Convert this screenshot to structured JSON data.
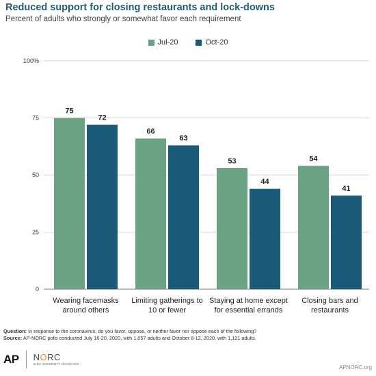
{
  "header": {
    "title": "Reduced support for closing restaurants and lock-downs",
    "subtitle": "Percent of adults who strongly or somewhat favor each requirement"
  },
  "colors": {
    "jul": "#6aa284",
    "oct": "#1a5b78",
    "grid": "#d9d9d9",
    "axis": "#777777"
  },
  "chart_data": {
    "type": "bar",
    "categories": [
      [
        "Wearing facemasks",
        "around others"
      ],
      [
        "Limiting gatherings to",
        "10 or fewer"
      ],
      [
        "Staying at home except",
        "for essential errands"
      ],
      [
        "Closing bars and",
        "restaurants"
      ]
    ],
    "series": [
      {
        "name": "Jul-20",
        "values": [
          75,
          66,
          53,
          54
        ],
        "color": "#6aa284"
      },
      {
        "name": "Oct-20",
        "values": [
          72,
          63,
          44,
          41
        ],
        "color": "#1a5b78"
      }
    ],
    "ylim": [
      0,
      100
    ],
    "yticks": [
      {
        "value": 0,
        "label": "0"
      },
      {
        "value": 25,
        "label": "25"
      },
      {
        "value": 50,
        "label": "50"
      },
      {
        "value": 75,
        "label": "75"
      },
      {
        "value": 100,
        "label": "100%"
      }
    ],
    "grid": true,
    "legend_position": "top-center"
  },
  "footer": {
    "question_label": "Question:",
    "question_text": " In response to the coronavirus, do you favor, oppose, or neither favor nor oppose each of the following?",
    "source_label": "Source:",
    "source_text": " AP-NORC polls conducted July 16-20, 2020, with 1,057 adults and October 8-12, 2020, with 1,121 adults."
  },
  "branding": {
    "ap": "AP",
    "norc_n": "N",
    "norc_o": "O",
    "norc_rc": "RC",
    "norc_sub": "at the UNIVERSITY of CHICAGO",
    "site": "APNORC.org"
  }
}
